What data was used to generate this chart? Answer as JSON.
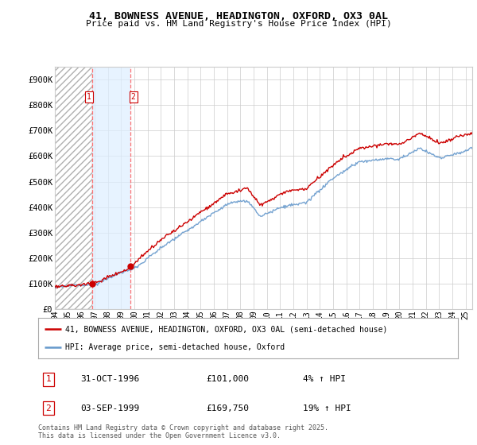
{
  "title_line1": "41, BOWNESS AVENUE, HEADINGTON, OXFORD, OX3 0AL",
  "title_line2": "Price paid vs. HM Land Registry's House Price Index (HPI)",
  "legend_label_red": "41, BOWNESS AVENUE, HEADINGTON, OXFORD, OX3 0AL (semi-detached house)",
  "legend_label_blue": "HPI: Average price, semi-detached house, Oxford",
  "transaction1_date": "31-OCT-1996",
  "transaction1_price": "£101,000",
  "transaction1_hpi": "4% ↑ HPI",
  "transaction2_date": "03-SEP-1999",
  "transaction2_price": "£169,750",
  "transaction2_hpi": "19% ↑ HPI",
  "footer": "Contains HM Land Registry data © Crown copyright and database right 2025.\nThis data is licensed under the Open Government Licence v3.0.",
  "xmin": 1994.0,
  "xmax": 2025.5,
  "ymin": 0,
  "ymax": 950000,
  "yticks": [
    0,
    100000,
    200000,
    300000,
    400000,
    500000,
    600000,
    700000,
    800000,
    900000
  ],
  "ytick_labels": [
    "£0",
    "£100K",
    "£200K",
    "£300K",
    "£400K",
    "£500K",
    "£600K",
    "£700K",
    "£800K",
    "£900K"
  ],
  "xtick_years": [
    1994,
    1995,
    1996,
    1997,
    1998,
    1999,
    2000,
    2001,
    2002,
    2003,
    2004,
    2005,
    2006,
    2007,
    2008,
    2009,
    2010,
    2011,
    2012,
    2013,
    2014,
    2015,
    2016,
    2017,
    2018,
    2019,
    2020,
    2021,
    2022,
    2023,
    2024,
    2025
  ],
  "t1_x": 1996.833,
  "t1_y": 101000,
  "t2_x": 1999.67,
  "t2_y": 169750,
  "color_red": "#cc0000",
  "color_blue": "#6699cc",
  "background_fig": "#ffffff",
  "background_plot": "#ffffff"
}
